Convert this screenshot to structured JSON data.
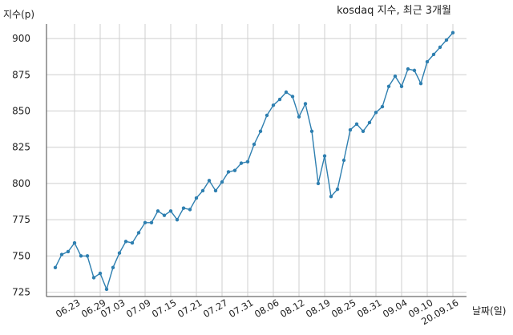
{
  "chart_data": {
    "type": "line",
    "title": "kosdaq 지수, 최근 3개월",
    "ylabel": "지수(p)",
    "xlabel": "날짜(일)",
    "ylim": [
      722,
      910
    ],
    "yticks": [
      725,
      750,
      775,
      800,
      825,
      850,
      875,
      900
    ],
    "grid": true,
    "line_color": "#2e7fb0",
    "x_tick_labels": [
      "06.23",
      "06.29",
      "07.03",
      "07.09",
      "07.15",
      "07.21",
      "07.27",
      "07.31",
      "08.06",
      "08.12",
      "08.19",
      "08.25",
      "08.31",
      "09.04",
      "09.10",
      "20.09.16"
    ],
    "x_tick_index": [
      3,
      7,
      10,
      14,
      18,
      22,
      26,
      30,
      34,
      38,
      42,
      46,
      50,
      54,
      58,
      62
    ],
    "values": [
      742,
      751,
      753,
      759,
      750,
      750,
      735,
      738,
      727,
      742,
      752,
      760,
      759,
      766,
      773,
      773,
      781,
      778,
      781,
      775,
      783,
      782,
      790,
      795,
      802,
      795,
      801,
      808,
      809,
      814,
      815,
      827,
      836,
      847,
      854,
      858,
      863,
      860,
      846,
      855,
      836,
      800,
      819,
      791,
      796,
      816,
      837,
      841,
      836,
      842,
      849,
      853,
      867,
      874,
      867,
      879,
      878,
      869,
      884,
      889,
      894,
      899,
      904
    ]
  }
}
